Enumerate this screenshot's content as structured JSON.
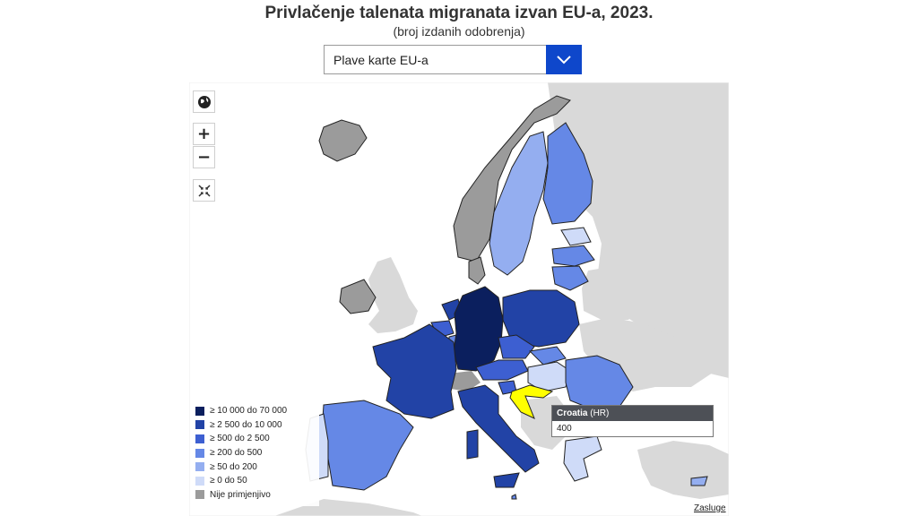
{
  "header": {
    "title": "Privlačenje talenata migranata izvan EU-a, 2023.",
    "subtitle": "(broj izdanih odobrenja)"
  },
  "indicator_select": {
    "selected": "Plave karte EU-a"
  },
  "map_controls": {
    "globe": "globe-icon",
    "zoom_in": "+",
    "zoom_out": "−",
    "reset": "collapse-icon"
  },
  "colors": {
    "c1": "#0b1f5e",
    "c2": "#2243a6",
    "c3": "#3d5fd1",
    "c4": "#6588e6",
    "c5": "#94aef0",
    "c6": "#cfdbf8",
    "na": "#9b9b9b",
    "nonEU": "#d9d9d9",
    "sea": "#ffffff",
    "highlight": "#ffff00"
  },
  "legend": {
    "items": [
      {
        "label": "≥ 10 000 do 70 000",
        "color": "#0b1f5e"
      },
      {
        "label": "≥ 2 500 do 10 000",
        "color": "#2243a6"
      },
      {
        "label": "≥ 500 do 2 500",
        "color": "#3d5fd1"
      },
      {
        "label": "≥ 200 do 500",
        "color": "#6588e6"
      },
      {
        "label": "≥ 50 do 200",
        "color": "#94aef0"
      },
      {
        "label": "≥ 0 do 50",
        "color": "#cfdbf8"
      },
      {
        "label": "Nije primjenjivo",
        "color": "#9b9b9b"
      }
    ]
  },
  "tooltip": {
    "country": "Croatia",
    "code": "(HR)",
    "value": "400"
  },
  "credits": "Zasluge"
}
